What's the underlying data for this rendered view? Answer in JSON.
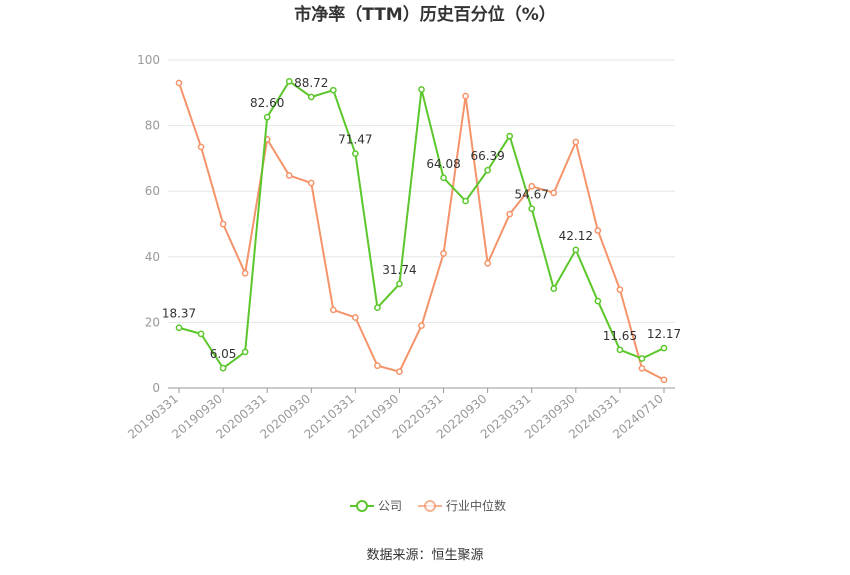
{
  "chart_data": {
    "type": "line",
    "title": "市净率（TTM）历史百分位（%）",
    "source": "数据来源：恒生聚源",
    "ylim": [
      0,
      100
    ],
    "yticks": [
      0,
      20,
      40,
      60,
      80,
      100
    ],
    "grid": true,
    "legend_position": "bottom",
    "x_tick_labels": [
      "20190331",
      "20190930",
      "20200331",
      "20200930",
      "20210331",
      "20210930",
      "20220331",
      "20220930",
      "20230331",
      "20230930",
      "20240331",
      "20240710"
    ],
    "x_tick_indices": [
      0,
      2,
      4,
      6,
      8,
      10,
      12,
      14,
      16,
      18,
      20,
      22
    ],
    "point_count": 23,
    "series": [
      {
        "name": "公司",
        "color": "#5cc72c",
        "values": [
          18.37,
          16.5,
          6.05,
          11.0,
          82.6,
          93.5,
          88.72,
          90.8,
          71.47,
          24.5,
          31.74,
          91.0,
          64.08,
          57.0,
          66.39,
          76.8,
          54.67,
          30.3,
          42.12,
          26.5,
          11.65,
          9.0,
          12.17
        ],
        "labels": {
          "0": "18.37",
          "2": "6.05",
          "4": "82.60",
          "6": "88.72",
          "8": "71.47",
          "10": "31.74",
          "12": "64.08",
          "14": "66.39",
          "16": "54.67",
          "18": "42.12",
          "20": "11.65",
          "22": "12.17"
        }
      },
      {
        "name": "行业中位数",
        "color": "#f5946a",
        "values": [
          93.0,
          73.5,
          50.0,
          35.0,
          75.8,
          64.8,
          62.5,
          23.8,
          21.5,
          6.8,
          5.0,
          19.0,
          41.0,
          89.0,
          38.0,
          53.0,
          61.5,
          59.5,
          75.0,
          48.0,
          30.0,
          6.0,
          2.5
        ]
      }
    ]
  }
}
